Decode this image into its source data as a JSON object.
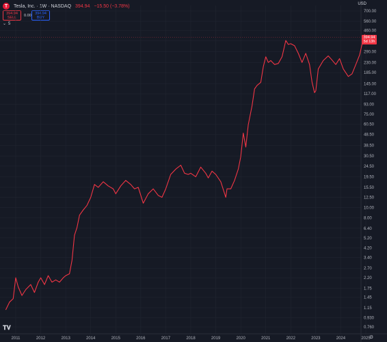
{
  "header": {
    "logo_letter": "T",
    "title": "Tesla, Inc. · 1W · NASDAQ",
    "last_price": "394.94",
    "change": "−15.50 (−3.78%)"
  },
  "trade": {
    "sell_price": "394.94",
    "sell_label": "SELL",
    "spread": "0.00",
    "buy_price": "394.94",
    "buy_label": "BUY"
  },
  "collapse": {
    "icon": "chevron-down-icon",
    "count": "5"
  },
  "price_scale": {
    "currency": "USD",
    "tag_price": "394.94",
    "tag_countdown": "5d 13h"
  },
  "colors": {
    "line": "#f23645",
    "background": "#161a25",
    "grid": "#232733"
  },
  "chart_data": {
    "type": "line",
    "scale": "log",
    "y_ticks": [
      "700.00",
      "560.00",
      "460.00",
      "370.00",
      "290.00",
      "230.00",
      "185.00",
      "145.00",
      "117.00",
      "93.00",
      "75.00",
      "60.50",
      "48.50",
      "38.50",
      "30.50",
      "24.50",
      "19.50",
      "15.50",
      "12.50",
      "10.00",
      "8.00",
      "6.40",
      "5.20",
      "4.20",
      "3.40",
      "2.70",
      "2.20",
      "1.75",
      "1.45",
      "1.15",
      "0.930",
      "0.760"
    ],
    "x_ticks": [
      "2011",
      "2012",
      "2013",
      "2014",
      "2015",
      "2016",
      "2017",
      "2018",
      "2019",
      "2020",
      "2021",
      "2022",
      "2023",
      "2024",
      "2025"
    ],
    "series": [
      {
        "x": [
          2010.6,
          2010.75,
          2010.9,
          2011.0,
          2011.1,
          2011.25,
          2011.4,
          2011.6,
          2011.75,
          2011.9,
          2012.0,
          2012.15,
          2012.3,
          2012.45,
          2012.6,
          2012.75,
          2012.9,
          2013.0,
          2013.15,
          2013.25,
          2013.35,
          2013.45,
          2013.55,
          2013.7,
          2013.85,
          2014.0,
          2014.15,
          2014.3,
          2014.5,
          2014.7,
          2014.9,
          2015.0,
          2015.2,
          2015.4,
          2015.6,
          2015.75,
          2015.9,
          2016.1,
          2016.3,
          2016.5,
          2016.7,
          2016.85,
          2017.0,
          2017.2,
          2017.4,
          2017.6,
          2017.75,
          2017.9,
          2018.0,
          2018.2,
          2018.4,
          2018.6,
          2018.7,
          2018.85,
          2019.0,
          2019.2,
          2019.4,
          2019.45,
          2019.6,
          2019.75,
          2019.9,
          2020.0,
          2020.1,
          2020.2,
          2020.3,
          2020.45,
          2020.55,
          2020.65,
          2020.8,
          2020.9,
          2021.0,
          2021.1,
          2021.2,
          2021.35,
          2021.5,
          2021.65,
          2021.8,
          2021.9,
          2022.0,
          2022.15,
          2022.3,
          2022.45,
          2022.6,
          2022.75,
          2022.85,
          2022.95,
          2023.0,
          2023.1,
          2023.3,
          2023.5,
          2023.6,
          2023.8,
          2023.95,
          2024.1,
          2024.3,
          2024.45,
          2024.6,
          2024.75,
          2024.85,
          2024.95,
          2025.0
        ],
        "y": [
          1.1,
          1.3,
          1.4,
          2.2,
          1.8,
          1.5,
          1.7,
          1.9,
          1.6,
          2.0,
          2.2,
          1.9,
          2.3,
          2.0,
          2.1,
          2.0,
          2.2,
          2.3,
          2.4,
          3.2,
          5.5,
          6.5,
          8.5,
          9.5,
          10.5,
          12.5,
          16.5,
          15.5,
          17.5,
          16.0,
          15.0,
          13.5,
          16.0,
          18.0,
          16.5,
          15.0,
          15.5,
          11.0,
          13.5,
          15.0,
          13.0,
          12.5,
          15.0,
          20.5,
          23.0,
          25.0,
          21.0,
          20.5,
          21.0,
          19.5,
          24.0,
          21.0,
          19.0,
          22.0,
          20.5,
          17.5,
          12.5,
          15.0,
          15.0,
          18.0,
          23.0,
          30.0,
          50.0,
          37.0,
          60.0,
          90.0,
          130.0,
          140.0,
          150.0,
          210.0,
          260.0,
          230.0,
          240.0,
          220.0,
          225.0,
          260.0,
          370.0,
          340.0,
          345.0,
          330.0,
          280.0,
          230.0,
          280.0,
          220.0,
          150.0,
          120.0,
          125.0,
          200.0,
          240.0,
          265.0,
          250.0,
          220.0,
          250.0,
          200.0,
          170.0,
          180.0,
          220.0,
          270.0,
          340.0,
          420.0,
          394.94
        ]
      }
    ]
  }
}
